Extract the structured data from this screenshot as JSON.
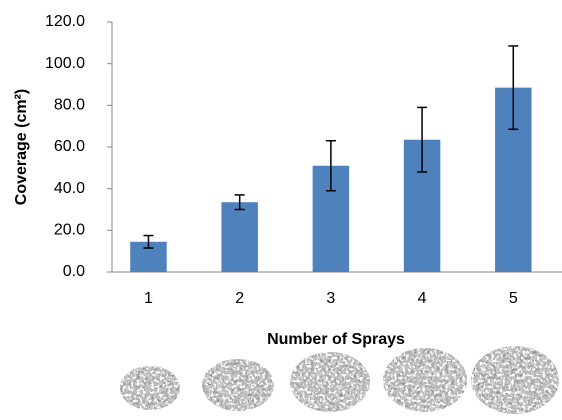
{
  "chart_data": {
    "type": "bar",
    "categories": [
      "1",
      "2",
      "3",
      "4",
      "5"
    ],
    "values": [
      14.5,
      33.5,
      51,
      63.5,
      88.5
    ],
    "errors": [
      3,
      3.5,
      12,
      15.5,
      20
    ],
    "color": "#4f81bd",
    "ylim": [
      0,
      120
    ],
    "yticks": [
      {
        "value": 0,
        "label": "0.0"
      },
      {
        "value": 20,
        "label": "20.0"
      },
      {
        "value": 40,
        "label": "40.0"
      },
      {
        "value": 60,
        "label": "60.0"
      },
      {
        "value": 80,
        "label": "80.0"
      },
      {
        "value": 100,
        "label": "100.0"
      },
      {
        "value": 120,
        "label": "120.0"
      }
    ],
    "y_label": "Coverage (cm²)",
    "x_label": "Number of Sprays",
    "grid": false
  }
}
